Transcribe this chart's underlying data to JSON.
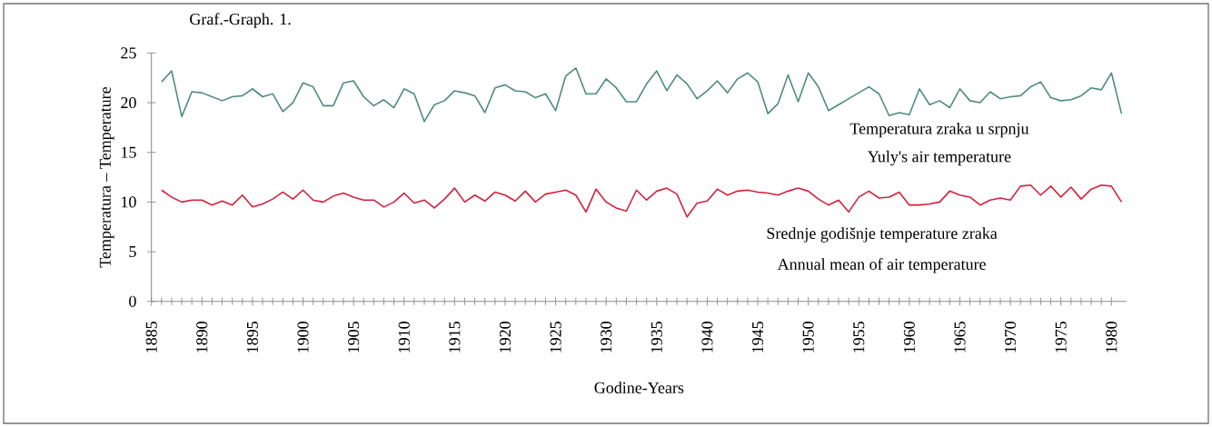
{
  "chart_data": {
    "type": "line",
    "title": "Graf.-Graph. 1.",
    "xlabel": "Godine-Years",
    "ylabel": "Temperatura – Temperature",
    "x": [
      1886,
      1887,
      1888,
      1889,
      1890,
      1891,
      1892,
      1893,
      1894,
      1895,
      1896,
      1897,
      1898,
      1899,
      1900,
      1901,
      1902,
      1903,
      1904,
      1905,
      1906,
      1907,
      1908,
      1909,
      1910,
      1911,
      1912,
      1913,
      1914,
      1915,
      1916,
      1917,
      1918,
      1919,
      1920,
      1921,
      1922,
      1923,
      1924,
      1925,
      1926,
      1927,
      1928,
      1929,
      1930,
      1931,
      1932,
      1933,
      1934,
      1935,
      1936,
      1937,
      1938,
      1939,
      1940,
      1941,
      1942,
      1943,
      1944,
      1945,
      1946,
      1947,
      1948,
      1949,
      1950,
      1951,
      1952,
      1953,
      1954,
      1955,
      1956,
      1957,
      1958,
      1959,
      1960,
      1961,
      1962,
      1963,
      1964,
      1965,
      1966,
      1967,
      1968,
      1969,
      1970,
      1971,
      1972,
      1973,
      1974,
      1975,
      1976,
      1977,
      1978,
      1979,
      1980,
      1981
    ],
    "series": [
      {
        "name": "Temperatura zraka u srpnju",
        "color": "#4f8c7d",
        "values": [
          22.1,
          23.2,
          18.6,
          21.1,
          21.0,
          20.6,
          20.2,
          20.6,
          20.7,
          21.4,
          20.6,
          20.9,
          19.1,
          20.0,
          22.0,
          21.6,
          19.7,
          19.7,
          22.0,
          22.2,
          20.6,
          19.7,
          20.3,
          19.5,
          21.4,
          20.9,
          18.1,
          19.8,
          20.2,
          21.2,
          21.0,
          20.7,
          19.0,
          21.5,
          21.8,
          21.2,
          21.1,
          20.5,
          20.9,
          19.2,
          22.7,
          23.5,
          20.9,
          20.9,
          22.4,
          21.5,
          20.1,
          20.1,
          21.9,
          23.2,
          21.2,
          22.8,
          21.9,
          20.4,
          21.2,
          22.2,
          21.0,
          22.4,
          23.0,
          22.1,
          18.9,
          19.9,
          22.8,
          20.1,
          23.0,
          21.6,
          19.2,
          19.8,
          20.4,
          21.0,
          21.6,
          20.9,
          18.7,
          19.0,
          18.8,
          21.4,
          19.8,
          20.2,
          19.5,
          21.4,
          20.2,
          20.0,
          21.1,
          20.4,
          20.6,
          20.7,
          21.6,
          22.1,
          20.5,
          20.2,
          20.3,
          20.7,
          21.5,
          21.3,
          23.0,
          18.9
        ]
      },
      {
        "name": "Srednje godišnje temperature zraka",
        "color": "#d4213d",
        "values": [
          11.2,
          10.5,
          10.0,
          10.2,
          10.2,
          9.7,
          10.1,
          9.7,
          10.7,
          9.5,
          9.8,
          10.3,
          11.0,
          10.3,
          11.2,
          10.2,
          10.0,
          10.6,
          10.9,
          10.5,
          10.2,
          10.2,
          9.5,
          10.0,
          10.9,
          9.9,
          10.2,
          9.4,
          10.3,
          11.4,
          10.0,
          10.7,
          10.1,
          11.0,
          10.7,
          10.1,
          11.1,
          10.0,
          10.8,
          11.0,
          11.2,
          10.7,
          9.0,
          11.3,
          10.0,
          9.4,
          9.1,
          11.2,
          10.2,
          11.1,
          11.4,
          10.8,
          8.5,
          9.9,
          10.1,
          11.3,
          10.7,
          11.1,
          11.2,
          11.0,
          10.9,
          10.7,
          11.1,
          11.4,
          11.1,
          10.3,
          9.7,
          10.2,
          9.0,
          10.5,
          11.1,
          10.4,
          10.5,
          11.0,
          9.7,
          9.7,
          9.8,
          10.0,
          11.1,
          10.7,
          10.5,
          9.7,
          10.2,
          10.4,
          10.2,
          11.6,
          11.7,
          10.7,
          11.6,
          10.5,
          11.5,
          10.3,
          11.3,
          11.7,
          11.6,
          10.0
        ]
      }
    ],
    "annotations": [
      "Yuly's air temperature",
      "Annual mean of air temperature"
    ],
    "xlim": [
      1885,
      1981.5
    ],
    "ylim": [
      0,
      25
    ],
    "xticks": [
      1885,
      1890,
      1895,
      1900,
      1905,
      1910,
      1915,
      1920,
      1925,
      1930,
      1935,
      1940,
      1945,
      1950,
      1955,
      1960,
      1965,
      1970,
      1975,
      1980
    ],
    "yticks": [
      0,
      5,
      10,
      15,
      20,
      25
    ],
    "marker": "none"
  }
}
